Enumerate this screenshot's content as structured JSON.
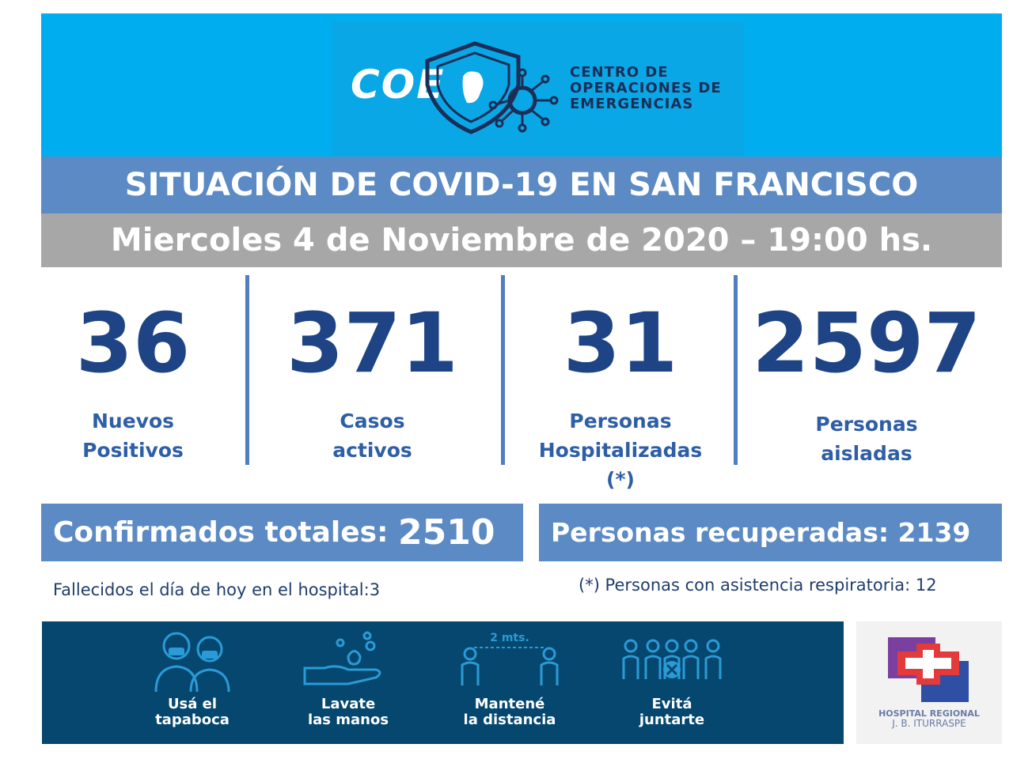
{
  "header": {
    "logo_letters": "COE",
    "logo_text": [
      "CENTRO DE",
      "OPERACIONES DE",
      "EMERGENCIAS"
    ],
    "title": "SITUACIÓN DE COVID-19 EN SAN FRANCISCO",
    "date": "Miercoles 4 de Noviembre de 2020 – 19:00 hs."
  },
  "stats": [
    {
      "value": "36",
      "label_1": "Nuevos",
      "label_2": "Positivos",
      "label_3": ""
    },
    {
      "value": "371",
      "label_1": "Casos",
      "label_2": "activos",
      "label_3": ""
    },
    {
      "value": "31",
      "label_1": "Personas",
      "label_2": "Hospitalizadas",
      "label_3": "(*)"
    },
    {
      "value": "2597",
      "label_1": "Personas",
      "label_2": "aisladas",
      "label_3": ""
    }
  ],
  "totals": {
    "confirmed_label": "Confirmados totales: ",
    "confirmed_value": "2510",
    "recovered_label": "Personas recuperadas: ",
    "recovered_value": "2139"
  },
  "notes": {
    "deaths": "Fallecidos el día de hoy en el hospital:3",
    "respiratory": "(*) Personas con asistencia respiratoria: 12"
  },
  "tips": [
    {
      "line_1": "Usá el",
      "line_2": "tapaboca",
      "icon": "mask-people-icon"
    },
    {
      "line_1": "Lavate",
      "line_2": "las manos",
      "icon": "hand-washing-icon"
    },
    {
      "line_1": "Mantené",
      "line_2": "la distancia",
      "icon": "social-distance-icon",
      "caption": "2 mts."
    },
    {
      "line_1": "Evitá",
      "line_2": "juntarte",
      "icon": "no-gathering-icon"
    }
  ],
  "hospital": {
    "line_1": "HOSPITAL REGIONAL",
    "line_2": "J. B. ITURRASPE"
  },
  "colors": {
    "header_bg": "#00aeef",
    "title_bg": "#5b8ac4",
    "date_bg": "#a7a7a7",
    "stat_number": "#1f4486",
    "tips_bg": "#05476f"
  }
}
